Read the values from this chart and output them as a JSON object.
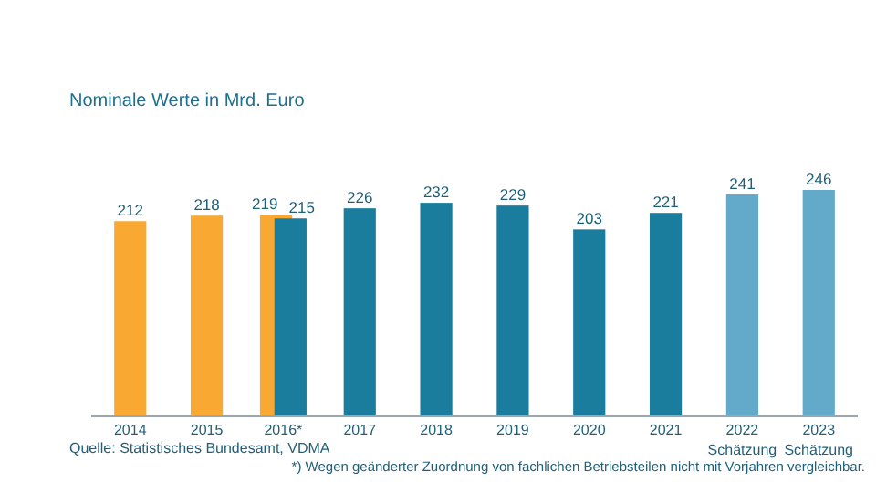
{
  "chart_data": {
    "type": "bar",
    "title": "Nominale Werte in Mrd. Euro",
    "categories": [
      "2014",
      "2015",
      "2016*",
      "2017",
      "2018",
      "2019",
      "2020",
      "2021",
      "2022\nSchätzung",
      "2023\nSchätzung"
    ],
    "series": [
      {
        "color": "#f9a832",
        "values": [
          212,
          218,
          219,
          null,
          null,
          null,
          null,
          null,
          null,
          null
        ]
      },
      {
        "color": "#1a7d9e",
        "values": [
          null,
          null,
          215,
          226,
          232,
          229,
          203,
          221,
          null,
          null
        ]
      },
      {
        "color": "#63a9c9",
        "values": [
          null,
          null,
          null,
          null,
          null,
          null,
          null,
          null,
          241,
          246
        ]
      }
    ],
    "data_labels": true,
    "annotations": [
      "Quelle: Statistisches Bundesamt, VDMA",
      "*) Wegen geänderter Zuordnung von fachlichen Betriebsteilen nicht mit Vorjahren vergleichbar."
    ]
  }
}
